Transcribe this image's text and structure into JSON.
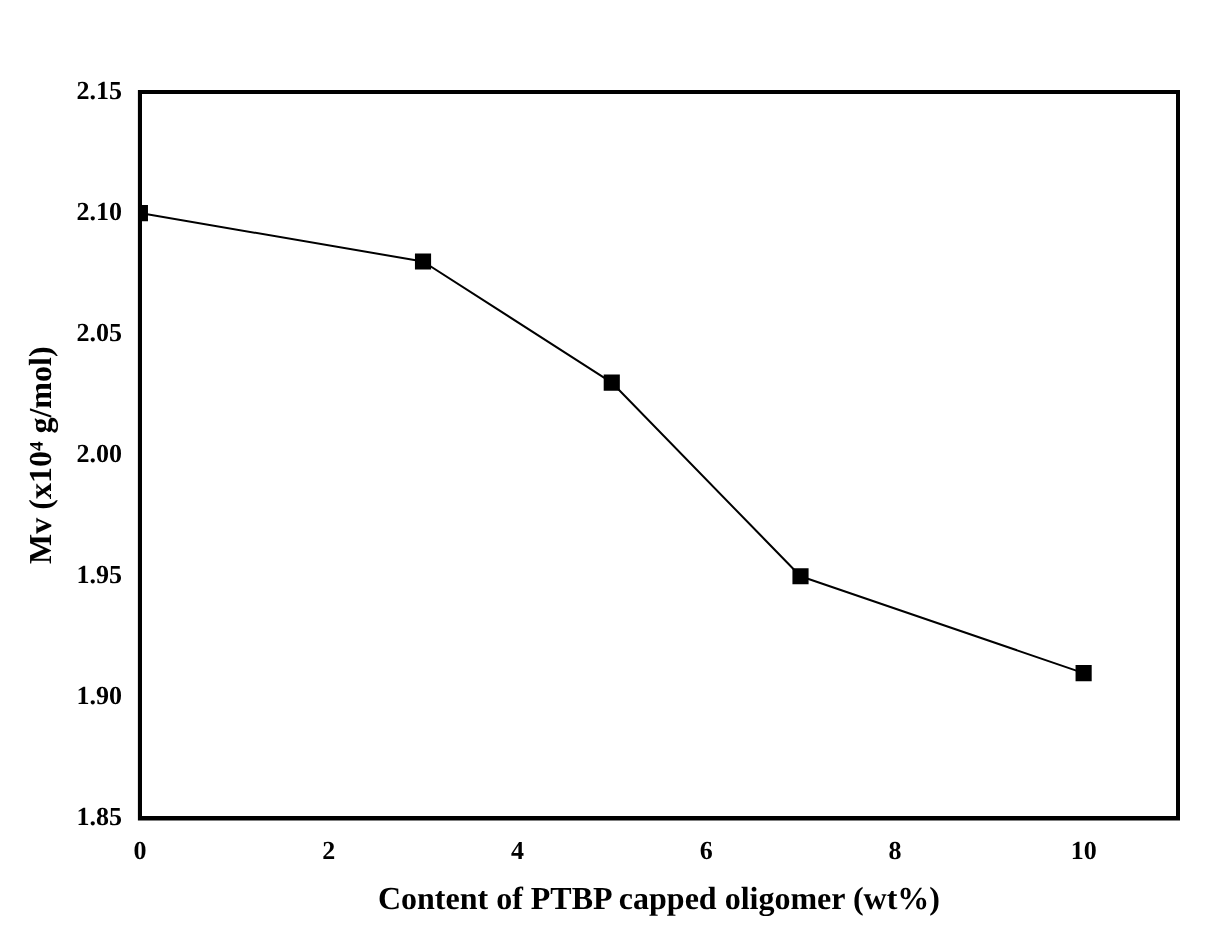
{
  "chart_data": {
    "type": "line",
    "xlabel": "Content of PTBP capped oligomer (wt%)",
    "ylabel": "Mv (x10⁴ g/mol)",
    "x": [
      0,
      3,
      5,
      7,
      10
    ],
    "series": [
      {
        "color": "#000000",
        "values": [
          2.1,
          2.08,
          2.03,
          1.95,
          1.91
        ]
      }
    ],
    "xlim": [
      0,
      11
    ],
    "xticks": [
      0,
      2,
      4,
      6,
      8,
      10
    ],
    "ylim": [
      1.85,
      2.15
    ],
    "yticks": [
      1.85,
      {
        "value": 1.9,
        "label": "1.90"
      },
      1.95,
      {
        "value": 2.0,
        "label": "2.00"
      },
      2.05,
      {
        "value": 2.1,
        "label": "2.10"
      },
      2.15
    ],
    "grid": false,
    "legend": false,
    "marker": "square",
    "line_style": "solid"
  }
}
